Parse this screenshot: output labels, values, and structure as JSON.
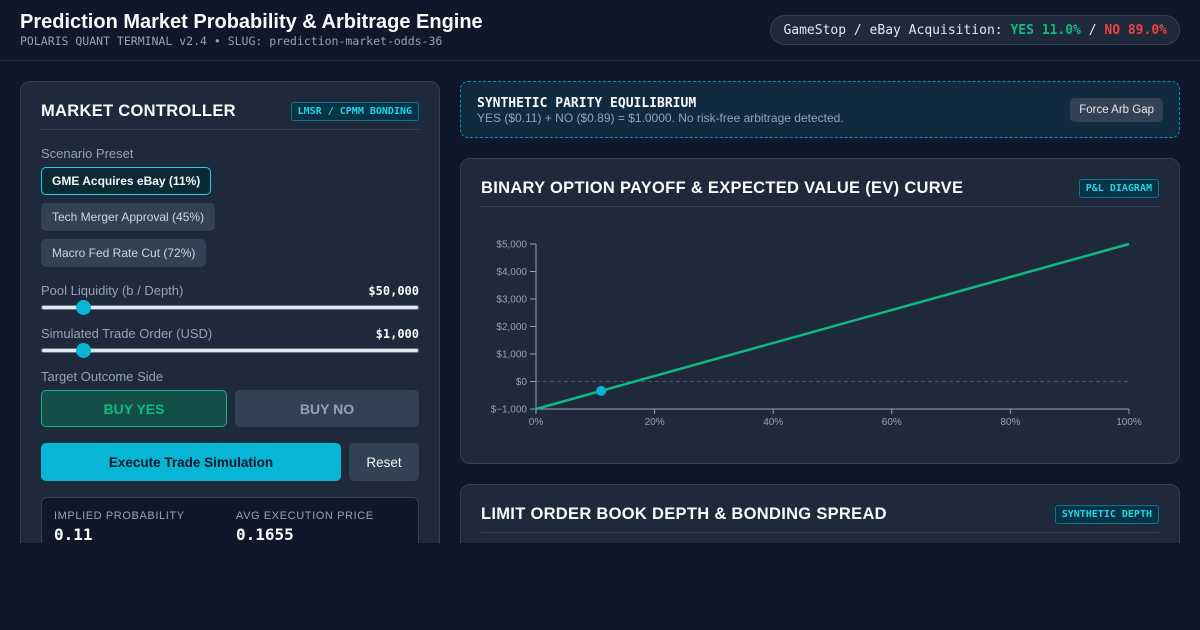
{
  "header": {
    "title": "Prediction Market Probability & Arbitrage Engine",
    "subtitle": "POLARIS QUANT TERMINAL v2.4 • SLUG: prediction-market-odds-36",
    "ticker": {
      "market": "GameStop / eBay Acquisition: ",
      "yes": "YES 11.0%",
      "sep": " / ",
      "no": "NO 89.0%"
    }
  },
  "controller": {
    "title": "MARKET CONTROLLER",
    "tag": "LMSR / CPMM BONDING",
    "scenario_label": "Scenario Preset",
    "presets": [
      "GME Acquires eBay (11%)",
      "Tech Merger Approval (45%)",
      "Macro Fed Rate Cut (72%)"
    ],
    "liquidity_label": "Pool Liquidity (b / Depth)",
    "liquidity_value": "$50,000",
    "liquidity_level": 0.11,
    "trade_label": "Simulated Trade Order (USD)",
    "trade_value": "$1,000",
    "trade_level": 0.11,
    "side_label": "Target Outcome Side",
    "buy_yes": "BUY YES",
    "buy_no": "BUY NO",
    "execute": "Execute Trade Simulation",
    "reset": "Reset",
    "stats": [
      {
        "label": "IMPLIED PROBABILITY",
        "value": "0.11"
      },
      {
        "label": "AVG EXECUTION PRICE",
        "value": "0.1655"
      }
    ]
  },
  "parity": {
    "title": "SYNTHETIC PARITY EQUILIBRIUM",
    "description": "YES ($0.11) + NO ($0.89) = $1.0000. No risk-free arbitrage detected.",
    "button": "Force Arb Gap"
  },
  "payoff": {
    "title": "BINARY OPTION PAYOFF & EXPECTED VALUE (EV) CURVE",
    "tag": "P&L DIAGRAM"
  },
  "book": {
    "title": "LIMIT ORDER BOOK DEPTH & BONDING SPREAD",
    "tag": "SYNTHETIC DEPTH"
  },
  "chart_data": {
    "type": "line",
    "x": [
      0,
      100
    ],
    "y": [
      -1000,
      5000
    ],
    "xticks": [
      "0%",
      "20%",
      "40%",
      "60%",
      "80%",
      "100%"
    ],
    "yticks": [
      "$5,000",
      "$4,000",
      "$3,000",
      "$2,000",
      "$1,000",
      "$0",
      "$−1,000"
    ],
    "xlim": [
      0,
      100
    ],
    "ylim": [
      -1000,
      5000
    ],
    "marker": {
      "x": 11,
      "y": -340
    },
    "zero_line": true,
    "colors": {
      "line": "#10b981",
      "marker": "#06b6d4"
    }
  }
}
